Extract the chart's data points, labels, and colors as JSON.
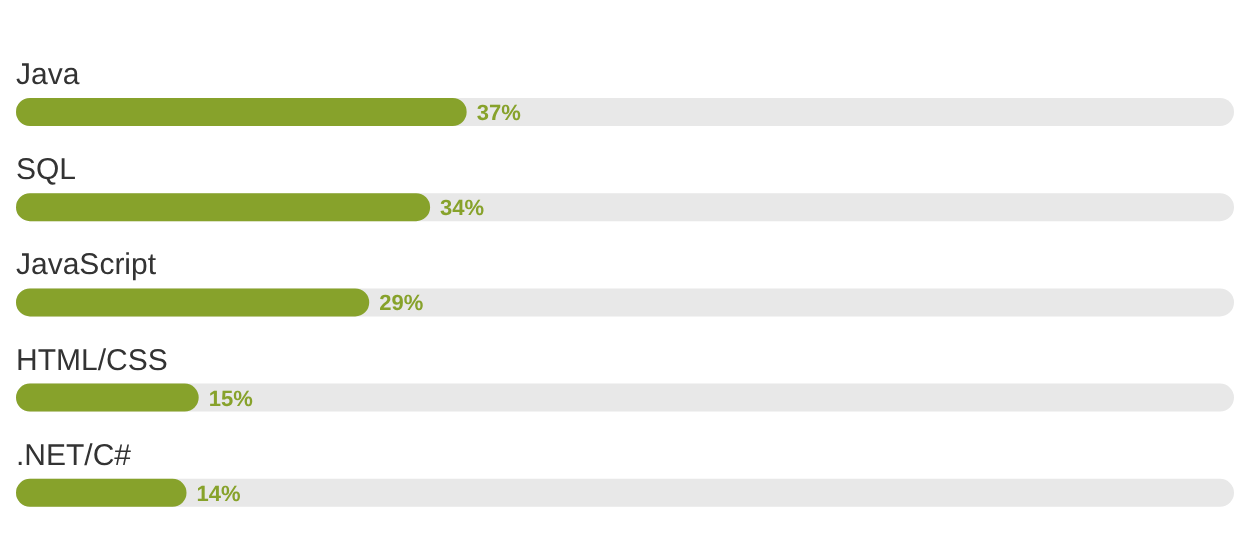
{
  "chart_data": {
    "type": "bar",
    "orientation": "horizontal",
    "categories": [
      "Java",
      "SQL",
      "JavaScript",
      "HTML/CSS",
      ".NET/C#"
    ],
    "values": [
      37,
      34,
      29,
      15,
      14
    ],
    "value_labels": [
      "37%",
      "34%",
      "29%",
      "15%",
      "14%"
    ],
    "color": "#87a22b",
    "xlim": [
      0,
      100
    ],
    "tick_labels": false
  }
}
